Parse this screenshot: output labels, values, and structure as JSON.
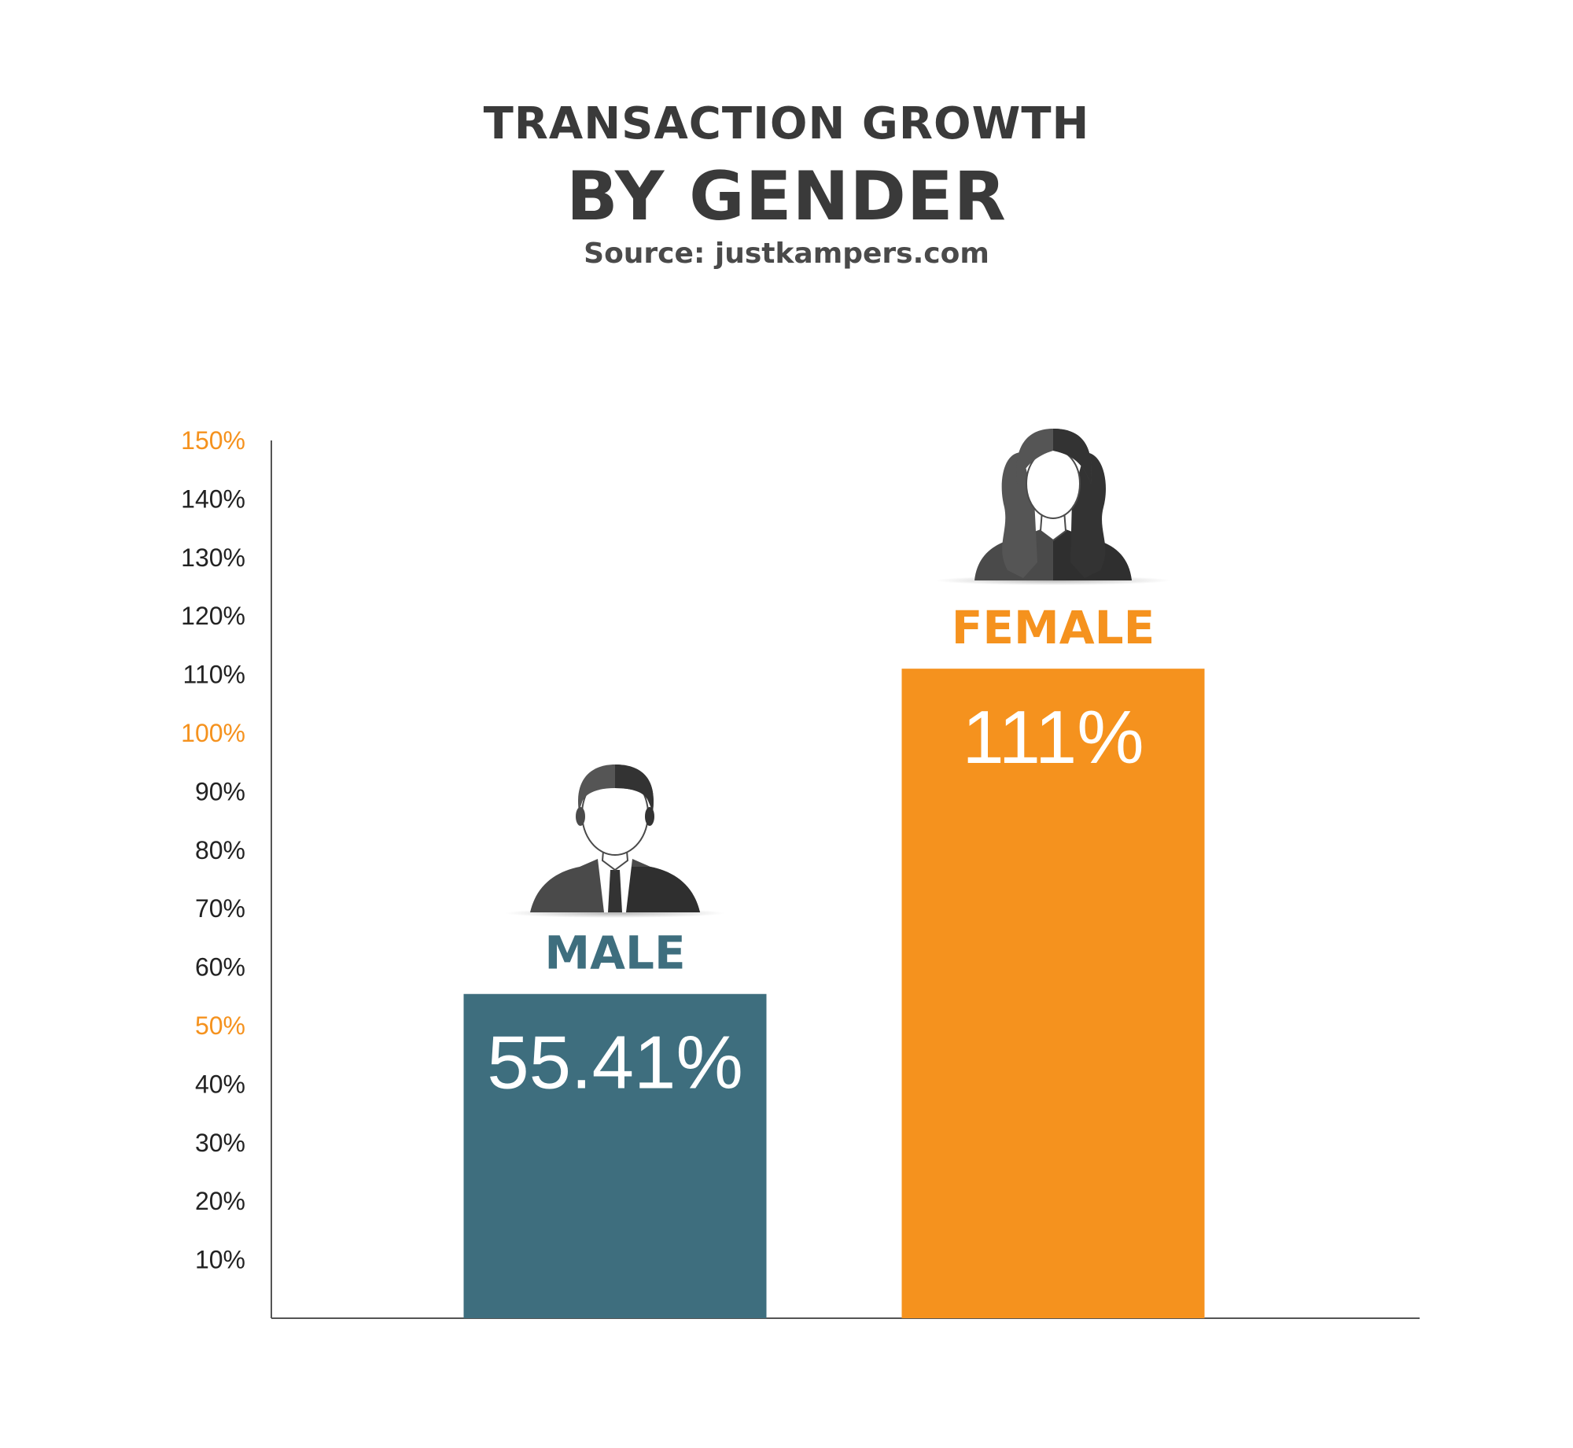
{
  "title_line1": "TRANSACTION GROWTH",
  "title_line2": "BY GENDER",
  "subtitle": "Source: justkampers.com",
  "chart_data": {
    "type": "bar",
    "categories": [
      "MALE",
      "FEMALE"
    ],
    "values": [
      55.41,
      111
    ],
    "value_labels": [
      "55.41%",
      "111%"
    ],
    "bar_colors": [
      "#3e6e7e",
      "#f5921e"
    ],
    "category_label_colors": [
      "#3e6e7e",
      "#f5921e"
    ],
    "category_icons": [
      "man-avatar-icon",
      "woman-avatar-icon"
    ],
    "ylim": [
      0,
      150
    ],
    "y_ticks": [
      {
        "value": 150,
        "label": "150%",
        "color": "#f5921e"
      },
      {
        "value": 140,
        "label": "140%",
        "color": "#222222"
      },
      {
        "value": 130,
        "label": "130%",
        "color": "#222222"
      },
      {
        "value": 120,
        "label": "120%",
        "color": "#222222"
      },
      {
        "value": 110,
        "label": "110%",
        "color": "#222222"
      },
      {
        "value": 100,
        "label": "100%",
        "color": "#f5921e"
      },
      {
        "value": 90,
        "label": "90%",
        "color": "#222222"
      },
      {
        "value": 80,
        "label": "80%",
        "color": "#222222"
      },
      {
        "value": 70,
        "label": "70%",
        "color": "#222222"
      },
      {
        "value": 60,
        "label": "60%",
        "color": "#222222"
      },
      {
        "value": 50,
        "label": "50%",
        "color": "#f5921e"
      },
      {
        "value": 40,
        "label": "40%",
        "color": "#222222"
      },
      {
        "value": 30,
        "label": "30%",
        "color": "#222222"
      },
      {
        "value": 20,
        "label": "20%",
        "color": "#222222"
      },
      {
        "value": 10,
        "label": "10%",
        "color": "#222222"
      }
    ],
    "grid": false,
    "axis_color": "#555555"
  }
}
